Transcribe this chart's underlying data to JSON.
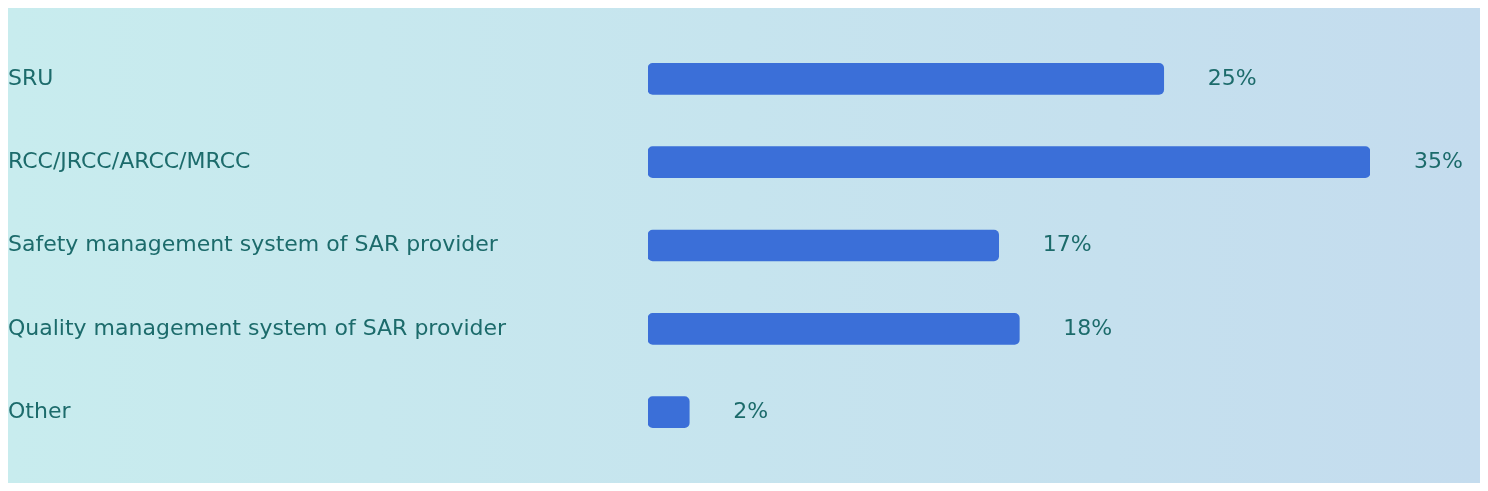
{
  "chart_data": {
    "type": "bar",
    "orientation": "horizontal",
    "categories": [
      "SRU",
      "RCC/JRCC/ARCC/MRCC",
      "Safety management system of SAR provider",
      "Quality management system of SAR provider",
      "Other"
    ],
    "values": [
      25,
      35,
      17,
      18,
      2
    ],
    "value_labels": [
      "25%",
      "35%",
      "17%",
      "18%",
      "2%"
    ],
    "color": "#3b6fd8",
    "grid": false,
    "legend": false
  }
}
